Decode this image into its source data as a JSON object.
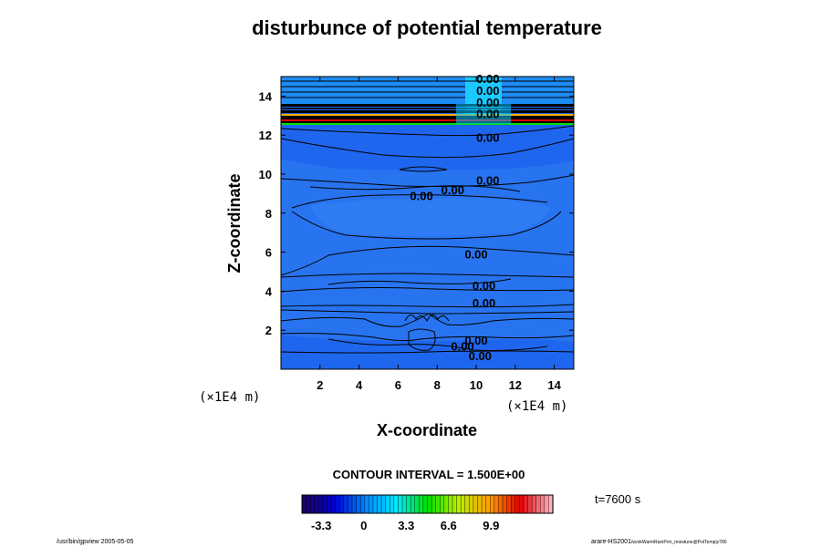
{
  "chart_data": {
    "type": "contour",
    "title": "disturbunce of potential temperature",
    "xlabel": "X-coordinate",
    "ylabel": "Z-coordinate",
    "x_unit": "(×1E4 m)",
    "y_unit": "(×1E4 m)",
    "xlim": [
      0,
      15
    ],
    "ylim": [
      0,
      15
    ],
    "x_ticks": [
      "2",
      "4",
      "6",
      "8",
      "10",
      "12",
      "14"
    ],
    "y_ticks": [
      "2",
      "4",
      "6",
      "8",
      "10",
      "12",
      "14"
    ],
    "x_tick_values": [
      2,
      4,
      6,
      8,
      10,
      12,
      14
    ],
    "y_tick_values": [
      2,
      4,
      6,
      8,
      10,
      12,
      14
    ],
    "contour_labels": [
      {
        "text": "0.00",
        "x": 10.6,
        "z": 14.9
      },
      {
        "text": "0.00",
        "x": 10.6,
        "z": 14.3
      },
      {
        "text": "0.00",
        "x": 10.6,
        "z": 13.7
      },
      {
        "text": "0.00",
        "x": 10.6,
        "z": 13.1
      },
      {
        "text": "0.00",
        "x": 10.6,
        "z": 11.9
      },
      {
        "text": "0.00",
        "x": 10.6,
        "z": 9.7
      },
      {
        "text": "0.00",
        "x": 8.8,
        "z": 9.2
      },
      {
        "text": "0.00",
        "x": 7.2,
        "z": 8.9
      },
      {
        "text": "0.00",
        "x": 10.0,
        "z": 5.9
      },
      {
        "text": "0.00",
        "x": 10.4,
        "z": 4.3
      },
      {
        "text": "0.00",
        "x": 10.4,
        "z": 3.4
      },
      {
        "text": "0.00",
        "x": 10.0,
        "z": 1.5
      },
      {
        "text": "0.00",
        "x": 9.3,
        "z": 1.2
      },
      {
        "text": "0.00",
        "x": 10.2,
        "z": 0.7
      }
    ],
    "contour_interval": "CONTOUR INTERVAL = 1.500E+00",
    "colorbar": {
      "ticks": [
        "-3.3",
        "0",
        "3.3",
        "6.6",
        "9.9"
      ],
      "tick_values": [
        -3.3,
        0,
        3.3,
        6.6,
        9.9
      ],
      "range": [
        -4.8,
        14.7
      ],
      "colors": [
        "#1a0066",
        "#0000d0",
        "#0088ff",
        "#00e8ff",
        "#00e000",
        "#b8f000",
        "#ffa000",
        "#e00000",
        "#ffb0c0"
      ]
    },
    "time_label": "t=7600 s"
  },
  "footer": {
    "left": "/usr/bin/gpview 2005-05-05",
    "right_main": "arare-HS2001",
    "right_small": "/workWarmRainPrm_moistune@PotTemp|z780"
  }
}
